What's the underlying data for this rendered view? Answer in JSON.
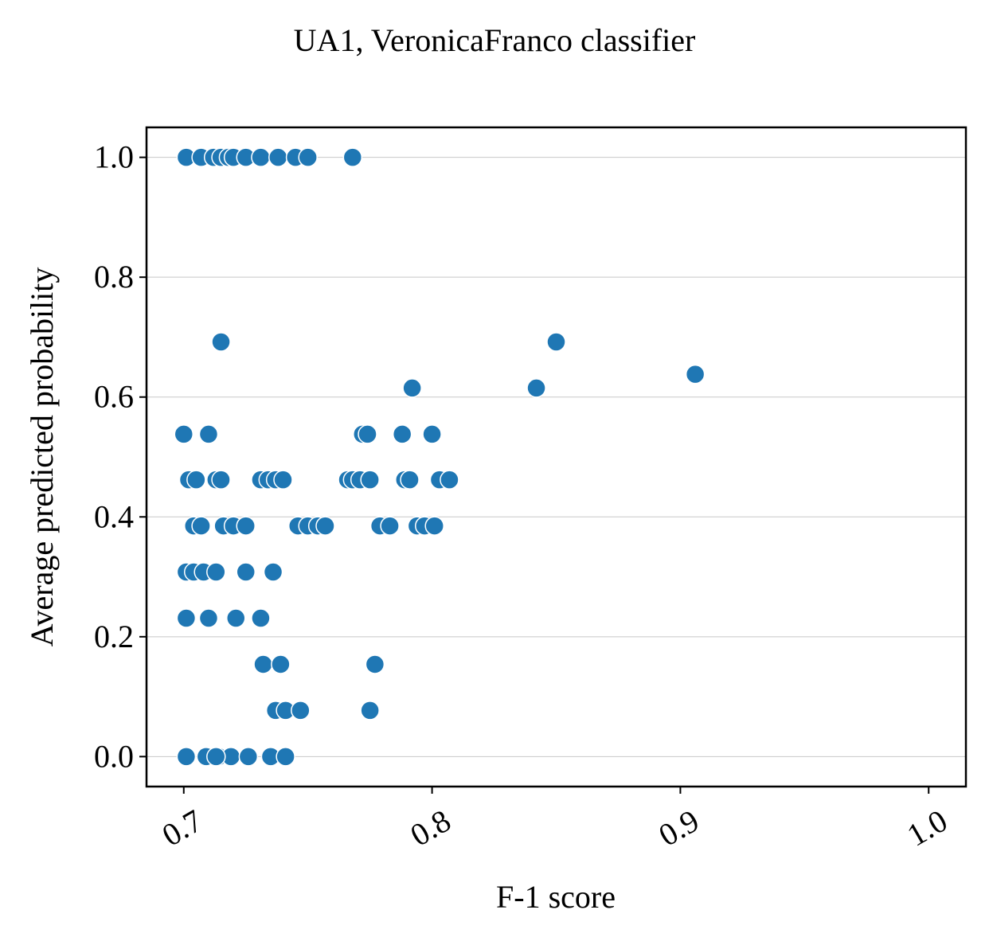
{
  "chart_data": {
    "type": "scatter",
    "title": "UA1, VeronicaFranco classifier",
    "xlabel": "F-1 score",
    "ylabel": "Average predicted probability",
    "xlim": [
      0.685,
      1.015
    ],
    "ylim": [
      -0.05,
      1.05
    ],
    "xticks": [
      0.7,
      0.8,
      0.9,
      1.0
    ],
    "xtick_labels": [
      "0.7",
      "0.8",
      "0.9",
      "1.0"
    ],
    "xtick_rotation_deg": 30,
    "yticks": [
      0.0,
      0.2,
      0.4,
      0.6,
      0.8,
      1.0
    ],
    "ytick_labels": [
      "0.0",
      "0.2",
      "0.4",
      "0.6",
      "0.8",
      "1.0"
    ],
    "grid": "horizontal",
    "legend": "none",
    "marker_color": "#1f77b4",
    "points": [
      [
        0.701,
        1.0
      ],
      [
        0.707,
        1.0
      ],
      [
        0.712,
        1.0
      ],
      [
        0.715,
        1.0
      ],
      [
        0.718,
        1.0
      ],
      [
        0.72,
        1.0
      ],
      [
        0.725,
        1.0
      ],
      [
        0.731,
        1.0
      ],
      [
        0.738,
        1.0
      ],
      [
        0.745,
        1.0
      ],
      [
        0.75,
        1.0
      ],
      [
        0.768,
        1.0
      ],
      [
        0.715,
        0.692
      ],
      [
        0.85,
        0.692
      ],
      [
        0.906,
        0.638
      ],
      [
        0.792,
        0.615
      ],
      [
        0.842,
        0.615
      ],
      [
        0.7,
        0.538
      ],
      [
        0.71,
        0.538
      ],
      [
        0.772,
        0.538
      ],
      [
        0.774,
        0.538
      ],
      [
        0.788,
        0.538
      ],
      [
        0.8,
        0.538
      ],
      [
        0.702,
        0.462
      ],
      [
        0.705,
        0.462
      ],
      [
        0.713,
        0.462
      ],
      [
        0.715,
        0.462
      ],
      [
        0.731,
        0.462
      ],
      [
        0.734,
        0.462
      ],
      [
        0.737,
        0.462
      ],
      [
        0.74,
        0.462
      ],
      [
        0.766,
        0.462
      ],
      [
        0.768,
        0.462
      ],
      [
        0.771,
        0.462
      ],
      [
        0.775,
        0.462
      ],
      [
        0.789,
        0.462
      ],
      [
        0.791,
        0.462
      ],
      [
        0.803,
        0.462
      ],
      [
        0.807,
        0.462
      ],
      [
        0.704,
        0.385
      ],
      [
        0.707,
        0.385
      ],
      [
        0.716,
        0.385
      ],
      [
        0.72,
        0.385
      ],
      [
        0.725,
        0.385
      ],
      [
        0.746,
        0.385
      ],
      [
        0.75,
        0.385
      ],
      [
        0.754,
        0.385
      ],
      [
        0.757,
        0.385
      ],
      [
        0.779,
        0.385
      ],
      [
        0.783,
        0.385
      ],
      [
        0.794,
        0.385
      ],
      [
        0.797,
        0.385
      ],
      [
        0.801,
        0.385
      ],
      [
        0.701,
        0.308
      ],
      [
        0.704,
        0.308
      ],
      [
        0.708,
        0.308
      ],
      [
        0.713,
        0.308
      ],
      [
        0.725,
        0.308
      ],
      [
        0.736,
        0.308
      ],
      [
        0.701,
        0.231
      ],
      [
        0.71,
        0.231
      ],
      [
        0.721,
        0.231
      ],
      [
        0.731,
        0.231
      ],
      [
        0.732,
        0.154
      ],
      [
        0.739,
        0.154
      ],
      [
        0.777,
        0.154
      ],
      [
        0.737,
        0.077
      ],
      [
        0.741,
        0.077
      ],
      [
        0.747,
        0.077
      ],
      [
        0.775,
        0.077
      ],
      [
        0.701,
        0.0
      ],
      [
        0.709,
        0.0
      ],
      [
        0.714,
        0.0
      ],
      [
        0.719,
        0.0
      ],
      [
        0.726,
        0.0
      ],
      [
        0.735,
        0.0
      ],
      [
        0.741,
        0.0
      ],
      [
        0.713,
        0.0
      ]
    ]
  }
}
